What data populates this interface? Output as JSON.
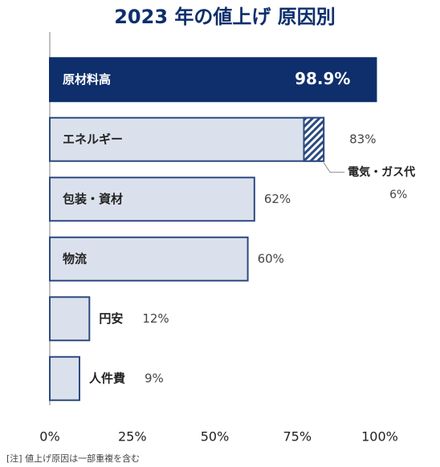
{
  "chart_data": {
    "type": "hbar",
    "title": "2023 年の値上げ 原因別",
    "categories": [
      "原材料高",
      "エネルギー",
      "包装・資材",
      "物流",
      "円安",
      "人件費"
    ],
    "values": [
      98.9,
      83,
      62,
      60,
      12,
      9
    ],
    "value_labels": [
      "98.9%",
      "83%",
      "62%",
      "60%",
      "12%",
      "9%"
    ],
    "colors": [
      "#0e2f6c",
      "#dbe1ec",
      "#dbe1ec",
      "#dbe1ec",
      "#dbe1ec",
      "#dbe1ec"
    ],
    "edge_color": "#2c4a80",
    "xlim": [
      0,
      100
    ],
    "xticks": [
      {
        "value": 0,
        "label": "0%"
      },
      {
        "value": 25,
        "label": "25%"
      },
      {
        "value": 50,
        "label": "50%"
      },
      {
        "value": 75,
        "label": "75%"
      },
      {
        "value": 100,
        "label": "100%"
      }
    ],
    "sub_segment": {
      "category": 1,
      "label": "電気・ガス代",
      "value": 6,
      "value_label": "6%",
      "color": "#2c4a80"
    },
    "note": "[注] 値上げ原因は一部重複を含む"
  }
}
